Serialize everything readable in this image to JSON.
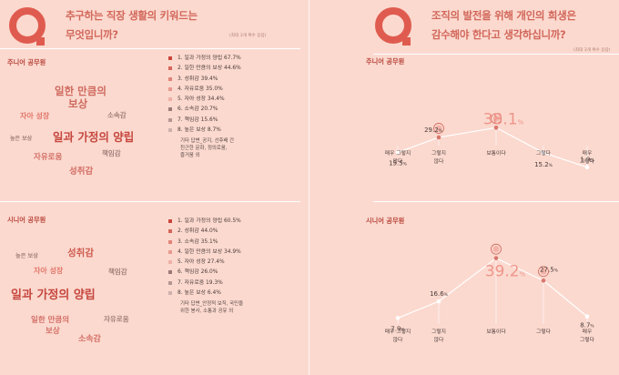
{
  "left": {
    "question": [
      "추구하는 직장 생활의 키워드는",
      "무엇입니까?"
    ],
    "note": "(최대 3개 복수 응답)",
    "junior": {
      "label": "주니어 공무원",
      "cloud": [
        "일한 만큼의",
        "보상",
        "자아 성장",
        "소속감",
        "높은 보상",
        "일과 가정의 양립",
        "책임감",
        "자유로움",
        "성취감"
      ],
      "items": [
        "1. 일과 가정의 양립 67.7%",
        "2. 일한 만큼의 보상 44.6%",
        "3. 성취감 39.4%",
        "4. 자유로움 35.0%",
        "5. 자아 성장 34.4%",
        "6. 소속감 20.7%",
        "7. 책임감 15.6%",
        "8. 높은 보상 8.7%"
      ],
      "extra": [
        "기타 답변_공지, 선후배 간",
        "친근한 문화, 정의로움,",
        "즐거움 외"
      ]
    },
    "senior": {
      "label": "시니어 공무원",
      "cloud": [
        "높은 보상",
        "성취감",
        "자아 성장",
        "책임감",
        "일과 가정의 양립",
        "일한 만큼의",
        "보상",
        "자유로움",
        "소속감"
      ],
      "items": [
        "1. 일과 가정의 양립 60.5%",
        "2. 성취감 44.0%",
        "3. 소속감 35.1%",
        "4. 일한 만큼의 보상 34.9%",
        "5. 자아 성장 27.4%",
        "6. 책임감 26.0%",
        "7. 자유로움 19.3%",
        "8. 높은 보상 6.4%"
      ],
      "extra": [
        "기타 답변_안정적 보직, 국민을",
        "위한 봉사, 소통과 공유 외"
      ]
    },
    "bullet_colors": [
      "#c9453c",
      "#d5655b",
      "#e0847a",
      "#e79a90",
      "#eeb0a6",
      "#9a7a76",
      "#b59792",
      "#cdb1ac"
    ]
  },
  "right": {
    "question": [
      "조직의 발전을 위해 개인의 희생은",
      "감수해야 한다고 생각하십니까?"
    ],
    "note": "(최대 3개 복수 응답)",
    "junior_label": "주니어 공무원",
    "senior_label": "시니어 공무원",
    "highlight_badge": "38.1%",
    "highlight_badge_senior": "39.2%"
  },
  "chart_data": [
    {
      "type": "line",
      "title": "주니어 공무원",
      "categories": [
        "매우 그렇지 않다",
        "그렇지 않다",
        "보통이다",
        "그렇다",
        "매우 그렇다"
      ],
      "values": [
        15.5,
        29.2,
        38.1,
        15.2,
        1.9
      ],
      "value_labels": [
        "15.5",
        "29.2",
        "38.1",
        "15.2",
        "1.9"
      ],
      "unit": "%"
    },
    {
      "type": "line",
      "title": "시니어 공무원",
      "categories": [
        "매우 그렇지 않다",
        "그렇지 않다",
        "보통이다",
        "그렇다",
        "매우 그렇다"
      ],
      "values": [
        7.9,
        16.6,
        39.2,
        27.5,
        8.7
      ],
      "value_labels": [
        "7.9",
        "16.6",
        "39.2",
        "27.5",
        "8.7"
      ],
      "unit": "%"
    }
  ],
  "colors": {
    "accent": "#d2675a",
    "dark_accent": "#b8443a",
    "background": "#fbd9cf"
  }
}
